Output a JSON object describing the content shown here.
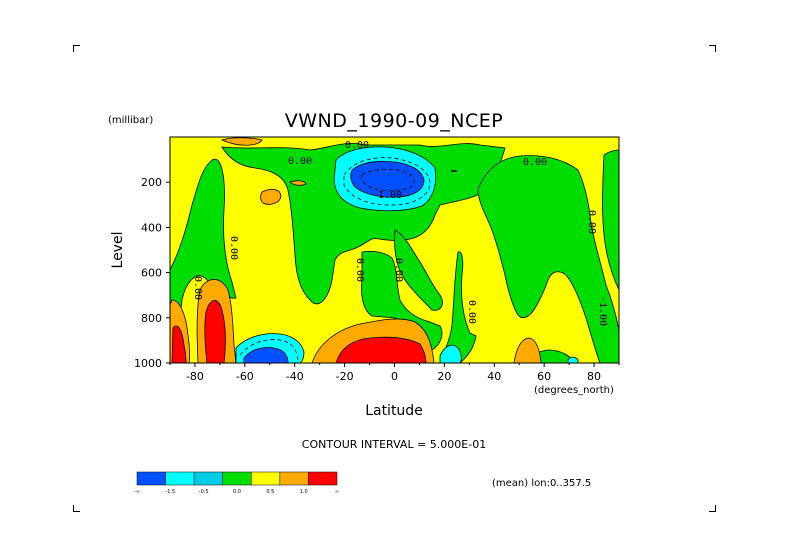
{
  "chart_data": {
    "type": "contour",
    "title": "VWND_1990-09_NCEP",
    "xlabel": "Latitude",
    "x_units": "(degrees_north)",
    "ylabel": "Level",
    "y_units": "(millibar)",
    "xlim": [
      -90,
      90
    ],
    "ylim": [
      1000,
      0
    ],
    "x_ticks": [
      "-80",
      "-60",
      "-40",
      "-20",
      "0",
      "20",
      "40",
      "60",
      "80"
    ],
    "y_ticks": [
      "200",
      "400",
      "600",
      "800",
      "1000"
    ],
    "contour_interval_text": "CONTOUR INTERVAL = 5.000E-01",
    "subset_text": "(mean) lon:0..357.5",
    "contour_labels": [
      "0.00",
      "0.00",
      "-1.00",
      "-1.00",
      "0.00",
      "0.00",
      "0.00",
      "0.00",
      "0.00",
      "0.00",
      "0.00"
    ],
    "colorbar": {
      "colors": [
        "#0050ff",
        "#00ffff",
        "#00cce6",
        "#00dd00",
        "#ffff00",
        "#ffaa00",
        "#ff0000"
      ],
      "tick_labels": [
        "-∞",
        "-1.5",
        "-0.5",
        "0.0",
        "0.5",
        "1.0",
        "∞"
      ]
    },
    "regions": [
      {
        "name": "meridional wind below -1.0",
        "value_range": "< -1.0",
        "centers": [
          [
            -5,
            180
          ],
          [
            -55,
            980
          ]
        ]
      },
      {
        "name": "meridional wind -1.0 to -0.5",
        "value_range": "-1.0..-0.5",
        "centers": [
          [
            -8,
            200
          ],
          [
            -55,
            960
          ],
          [
            22,
            975
          ],
          [
            70,
            990
          ]
        ]
      },
      {
        "name": "meridional wind -0.5 to 0.0",
        "value_range": "-0.5..0.0",
        "centers": [
          [
            -5,
            200
          ],
          [
            -30,
            550
          ],
          [
            20,
            700
          ],
          [
            70,
            600
          ],
          [
            -85,
            600
          ]
        ]
      },
      {
        "name": "meridional wind 0.0 to 0.5",
        "value_range": "0.0..0.5",
        "centers": [
          [
            -60,
            500
          ],
          [
            40,
            600
          ],
          [
            10,
            300
          ],
          [
            80,
            300
          ]
        ]
      },
      {
        "name": "meridional wind 0.5 to 1.0",
        "value_range": "0.5..1.0",
        "centers": [
          [
            -63,
            270
          ],
          [
            -5,
            900
          ],
          [
            50,
            980
          ],
          [
            -72,
            800
          ]
        ]
      },
      {
        "name": "meridional wind above 1.0",
        "value_range": "> 1.0",
        "centers": [
          [
            -5,
            980
          ],
          [
            -86,
            950
          ],
          [
            -72,
            900
          ]
        ]
      }
    ]
  }
}
